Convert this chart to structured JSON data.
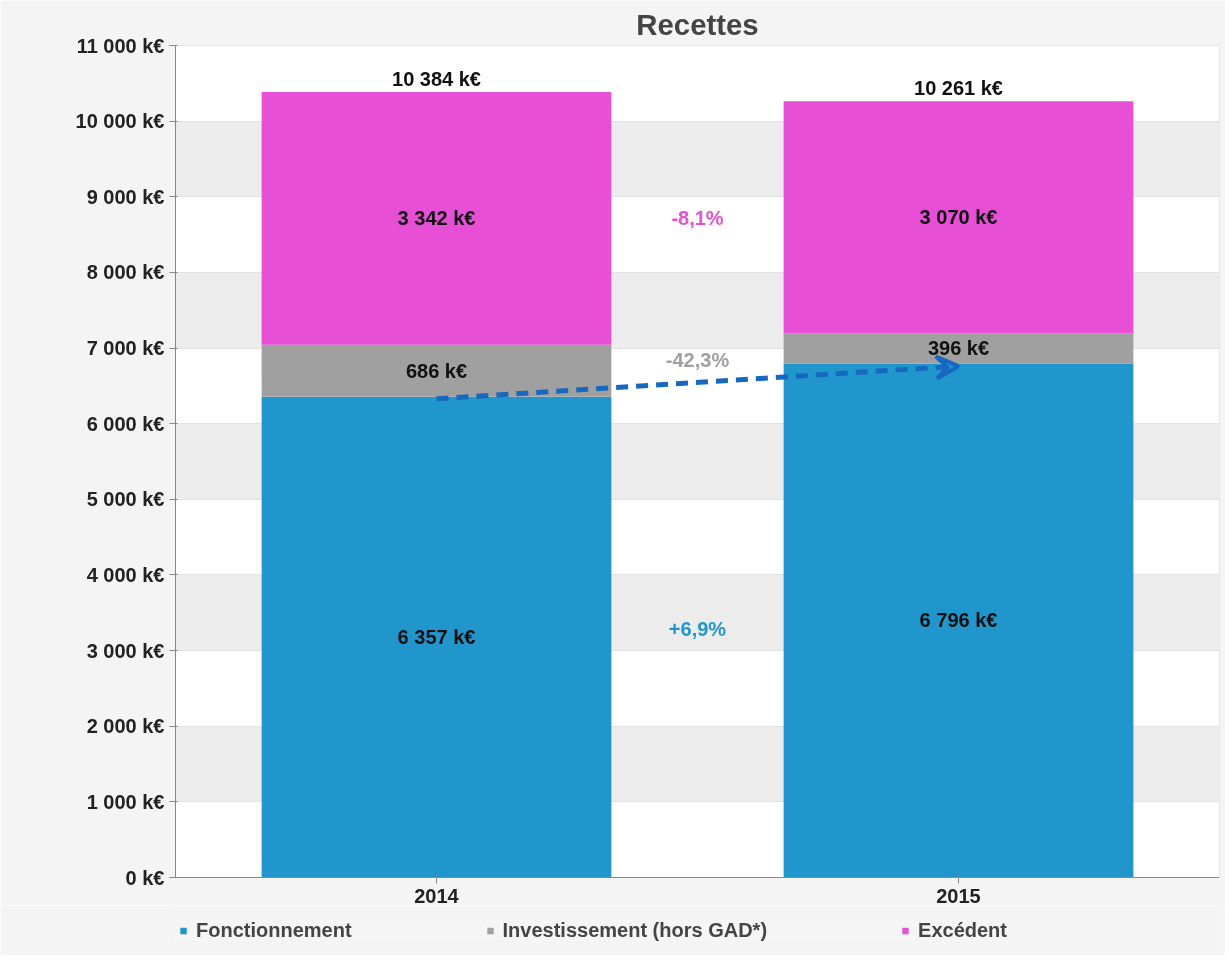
{
  "chart_data": {
    "type": "bar",
    "title": "Recettes",
    "stacked": true,
    "categories": [
      "2014",
      "2015"
    ],
    "series": [
      {
        "name": "Fonctionnement",
        "color": "#2196cd",
        "values": [
          6357,
          6796
        ],
        "value_labels": [
          "6 357 k€",
          "6 796 k€"
        ]
      },
      {
        "name": "Investissement (hors GAD*)",
        "color": "#a0a0a0",
        "values": [
          686,
          396
        ],
        "value_labels": [
          "686 k€",
          "396 k€"
        ]
      },
      {
        "name": "Excédent",
        "color": "#e64fd6",
        "values": [
          3342,
          3070
        ],
        "value_labels": [
          "3 342 k€",
          "3 070 k€"
        ]
      },
      {
        "type": "line",
        "color": "#1769c0",
        "line_style": "dashed",
        "values": [
          6330,
          6760
        ]
      }
    ],
    "totals": [
      "10 384 k€",
      "10 261 k€"
    ],
    "annotations": [
      "+6,9%",
      "-42,3%",
      "-8,1%"
    ],
    "ylim": [
      0,
      11000
    ],
    "yticks": [
      {
        "value": 0,
        "label": "0 k€"
      },
      {
        "value": 1000,
        "label": "1 000 k€"
      },
      {
        "value": 2000,
        "label": "2 000 k€"
      },
      {
        "value": 3000,
        "label": "3 000 k€"
      },
      {
        "value": 4000,
        "label": "4 000 k€"
      },
      {
        "value": 5000,
        "label": "5 000 k€"
      },
      {
        "value": 6000,
        "label": "6 000 k€"
      },
      {
        "value": 7000,
        "label": "7 000 k€"
      },
      {
        "value": 8000,
        "label": "8 000 k€"
      },
      {
        "value": 9000,
        "label": "9 000 k€"
      },
      {
        "value": 10000,
        "label": "10 000 k€"
      },
      {
        "value": 11000,
        "label": "11 000 k€"
      }
    ],
    "grid": "y",
    "legend": "bottom"
  }
}
